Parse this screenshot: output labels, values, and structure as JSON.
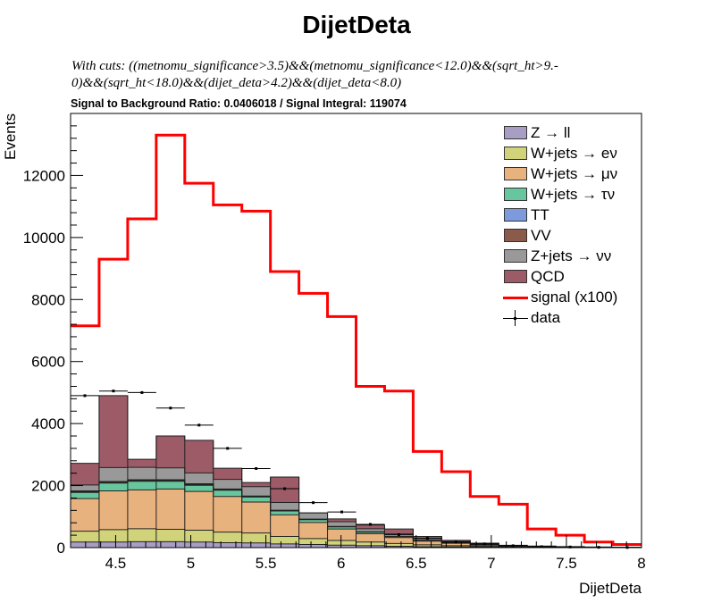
{
  "chart_data": {
    "type": "bar",
    "title": "DijetDeta",
    "cuts_line1": "With cuts: ((metnomu_significance>3.5)&&(metnomu_significance<12.0)&&(sqrt_ht>9.-",
    "cuts_line2": "0)&&(sqrt_ht<18.0)&&(dijet_deta>4.2)&&(dijet_deta<8.0)",
    "ratio_text": "Signal to Background Ratio: 0.0406018 / Signal Integral: 119074",
    "xlabel": "DijetDeta",
    "ylabel": "Events",
    "xlim": [
      4.2,
      8.0
    ],
    "ylim": [
      0,
      14000
    ],
    "x_ticks": [
      4.5,
      5,
      5.5,
      6,
      6.5,
      7,
      7.5,
      8
    ],
    "x_tick_labels": [
      "4.5",
      "5",
      "5.5",
      "6",
      "6.5",
      "7",
      "7.5",
      "8"
    ],
    "y_ticks": [
      0,
      2000,
      4000,
      6000,
      8000,
      10000,
      12000
    ],
    "y_tick_labels": [
      "0",
      "2000",
      "4000",
      "6000",
      "8000",
      "10000",
      "12000"
    ],
    "bin_edges": [
      4.2,
      4.39,
      4.58,
      4.77,
      4.96,
      5.15,
      5.34,
      5.53,
      5.72,
      5.91,
      6.1,
      6.29,
      6.48,
      6.67,
      6.86,
      7.05,
      7.24,
      7.43,
      7.62,
      7.81,
      8.0
    ],
    "stack": [
      {
        "name": "Z → ll",
        "color": "#a89ec4",
        "values": [
          180,
          180,
          190,
          190,
          180,
          160,
          150,
          120,
          100,
          80,
          60,
          45,
          30,
          20,
          15,
          10,
          5,
          5,
          3,
          2
        ]
      },
      {
        "name": "W+jets → eν",
        "color": "#d0d37a",
        "values": [
          350,
          400,
          420,
          400,
          380,
          340,
          320,
          240,
          190,
          150,
          120,
          90,
          60,
          40,
          25,
          15,
          10,
          8,
          5,
          3
        ]
      },
      {
        "name": "W+jets → μν",
        "color": "#e8b27e",
        "values": [
          1050,
          1250,
          1250,
          1300,
          1250,
          1150,
          1000,
          700,
          520,
          370,
          270,
          190,
          120,
          80,
          40,
          20,
          15,
          10,
          5,
          3
        ]
      },
      {
        "name": "W+jets → τν",
        "color": "#68c69e",
        "values": [
          200,
          250,
          280,
          250,
          200,
          200,
          160,
          120,
          90,
          70,
          50,
          30,
          20,
          15,
          10,
          5,
          3,
          2,
          2,
          1
        ]
      },
      {
        "name": "TT",
        "color": "#7d9bdc",
        "values": [
          20,
          20,
          20,
          20,
          20,
          15,
          15,
          10,
          10,
          5,
          5,
          5,
          3,
          2,
          2,
          1,
          1,
          1,
          0,
          0
        ]
      },
      {
        "name": "VV",
        "color": "#8a5a4a",
        "values": [
          30,
          30,
          30,
          30,
          30,
          25,
          20,
          15,
          10,
          10,
          5,
          5,
          3,
          2,
          2,
          1,
          1,
          0,
          0,
          0
        ]
      },
      {
        "name": "Z+jets → νν",
        "color": "#999999",
        "values": [
          190,
          450,
          400,
          380,
          350,
          310,
          300,
          250,
          200,
          150,
          100,
          75,
          55,
          35,
          20,
          10,
          5,
          3,
          2,
          1
        ]
      },
      {
        "name": "QCD",
        "color": "#9c5b67",
        "values": [
          700,
          2320,
          260,
          1030,
          1050,
          360,
          135,
          820,
          0,
          90,
          120,
          160,
          70,
          40,
          30,
          13,
          10,
          5,
          0,
          0
        ]
      }
    ],
    "signal": {
      "name": "signal (x100)",
      "color": "#ff0000",
      "values": [
        7150,
        9300,
        10600,
        13300,
        11750,
        11050,
        10850,
        8900,
        8200,
        7450,
        5200,
        5050,
        3100,
        2450,
        1650,
        1400,
        600,
        400,
        180,
        100
      ]
    },
    "data": {
      "name": "data",
      "values": [
        4900,
        5050,
        5000,
        4500,
        3950,
        3200,
        2550,
        1900,
        1450,
        1150,
        750,
        420,
        300,
        180,
        120,
        60,
        30,
        20,
        10,
        5
      ]
    },
    "legend_position": "top-right",
    "grid": false
  }
}
